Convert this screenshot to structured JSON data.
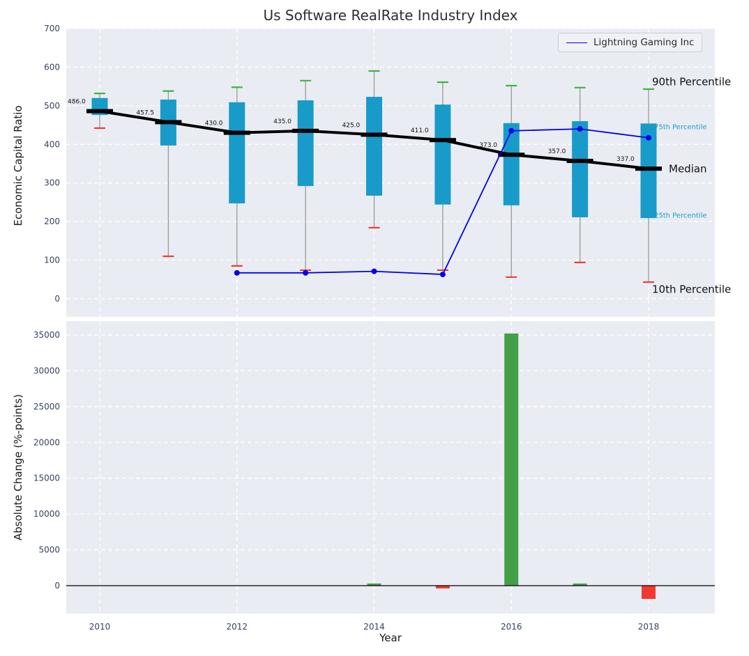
{
  "chart_data": [
    {
      "type": "boxplot+line",
      "title": "Us Software RealRate Industry Index",
      "ylabel": "Economic Capital Ratio",
      "ylim": [
        -47,
        700
      ],
      "yticks": [
        0,
        100,
        200,
        300,
        400,
        500,
        600,
        700
      ],
      "xticks": [
        2010,
        2012,
        2014,
        2016,
        2018
      ],
      "grid": true,
      "box_color": "#189bc9",
      "whisker_color": "#999999",
      "cap_top_color": "#3cb53c",
      "cap_bottom_color": "#f23b30",
      "median_color": "#000000",
      "boxes": [
        {
          "year": 2010,
          "p10": 442,
          "p25": 476,
          "median": 486.0,
          "p75": 520,
          "p90": 532,
          "label": "486.0"
        },
        {
          "year": 2011,
          "p10": 110,
          "p25": 397,
          "median": 457.5,
          "p75": 516,
          "p90": 538,
          "label": "457.5"
        },
        {
          "year": 2012,
          "p10": 85,
          "p25": 247,
          "median": 430.0,
          "p75": 509,
          "p90": 548,
          "label": "430.0"
        },
        {
          "year": 2013,
          "p10": 74,
          "p25": 292,
          "median": 435.0,
          "p75": 514,
          "p90": 565,
          "label": "435.0"
        },
        {
          "year": 2014,
          "p10": 184,
          "p25": 267,
          "median": 425.0,
          "p75": 523,
          "p90": 590,
          "label": "425.0"
        },
        {
          "year": 2015,
          "p10": 74,
          "p25": 244,
          "median": 411.0,
          "p75": 503,
          "p90": 561,
          "label": "411.0"
        },
        {
          "year": 2016,
          "p10": 56,
          "p25": 242,
          "median": 373.0,
          "p75": 455,
          "p90": 552,
          "label": "373.0"
        },
        {
          "year": 2017,
          "p10": 94,
          "p25": 211,
          "median": 357.0,
          "p75": 460,
          "p90": 547,
          "label": "357.0"
        },
        {
          "year": 2018,
          "p10": 43,
          "p25": 209,
          "median": 337.0,
          "p75": 454,
          "p90": 543,
          "label": "337.0"
        }
      ],
      "series": [
        {
          "name": "Lightning Gaming Inc",
          "color": "#0000ee",
          "x": [
            2012,
            2013,
            2014,
            2015,
            2016,
            2017,
            2018
          ],
          "values": [
            67,
            67,
            71,
            63,
            435,
            440,
            417
          ]
        }
      ],
      "annotations": [
        {
          "label": "90th Percentile",
          "value": 562,
          "color": "#111111",
          "size": 15,
          "dx": 0
        },
        {
          "label": "75th Percentile",
          "value": 446,
          "color": "#18a0c5",
          "size": 10,
          "dx": 3
        },
        {
          "label": "Median",
          "value": 337,
          "color": "#111111",
          "size": 15,
          "dx": 24
        },
        {
          "label": "25th Percentile",
          "value": 216,
          "color": "#18a0c5",
          "size": 10,
          "dx": 3
        },
        {
          "label": "10th Percentile",
          "value": 25,
          "color": "#111111",
          "size": 15,
          "dx": 0
        }
      ]
    },
    {
      "type": "bar",
      "ylabel": "Absolute Change (%-points)",
      "xlabel": "Year",
      "ylim": [
        -3890,
        36940
      ],
      "yticks": [
        0,
        5000,
        10000,
        15000,
        20000,
        25000,
        30000,
        35000
      ],
      "xticks": [
        2010,
        2012,
        2014,
        2016,
        2018
      ],
      "bars": [
        {
          "year": 2014,
          "value": 300
        },
        {
          "year": 2015,
          "value": -390
        },
        {
          "year": 2016,
          "value": 35200
        },
        {
          "year": 2017,
          "value": 300
        },
        {
          "year": 2018,
          "value": -1850
        }
      ],
      "positive_color": "#43a047",
      "negative_color": "#f3392f",
      "zero_line_color": "#000000"
    }
  ]
}
